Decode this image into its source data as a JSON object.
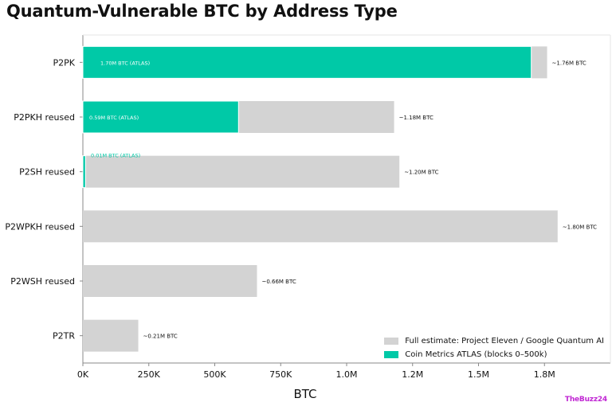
{
  "chart_data": {
    "type": "bar",
    "orientation": "horizontal",
    "stacked": false,
    "title": "Quantum-Vulnerable BTC by Address Type",
    "xlabel": "BTC",
    "ylabel": "",
    "xlim": [
      0,
      2000000
    ],
    "x_ticks": [
      0,
      250000,
      500000,
      750000,
      1000000,
      1250000,
      1500000,
      1750000
    ],
    "x_tick_labels": [
      "0K",
      "250K",
      "500K",
      "750K",
      "1.0M",
      "1.2M",
      "1.5M",
      "1.8M"
    ],
    "categories": [
      "P2PK",
      "P2PKH reused",
      "P2SH reused",
      "P2WPKH reused",
      "P2WSH reused",
      "P2TR"
    ],
    "series": [
      {
        "name": "Full estimate: Project Eleven / Google Quantum AI",
        "color": "#d3d3d3",
        "values": [
          1760000,
          1180000,
          1200000,
          1800000,
          660000,
          210000
        ],
        "labels": [
          "~1.76M BTC",
          "~1.18M BTC",
          "~1.20M BTC",
          "~1.80M BTC",
          "~0.66M BTC",
          "~0.21M BTC"
        ]
      },
      {
        "name": "Coin Metrics ATLAS (blocks 0–500k)",
        "color": "#00c9a7",
        "values": [
          1700000,
          590000,
          10000,
          null,
          null,
          null
        ],
        "labels": [
          "1.70M BTC (ATLAS)",
          "0.59M BTC (ATLAS)",
          "0.01M BTC (ATLAS)",
          null,
          null,
          null
        ]
      }
    ],
    "grid": false,
    "legend_position": "bottom-right"
  },
  "watermark": "TheBuzz24"
}
